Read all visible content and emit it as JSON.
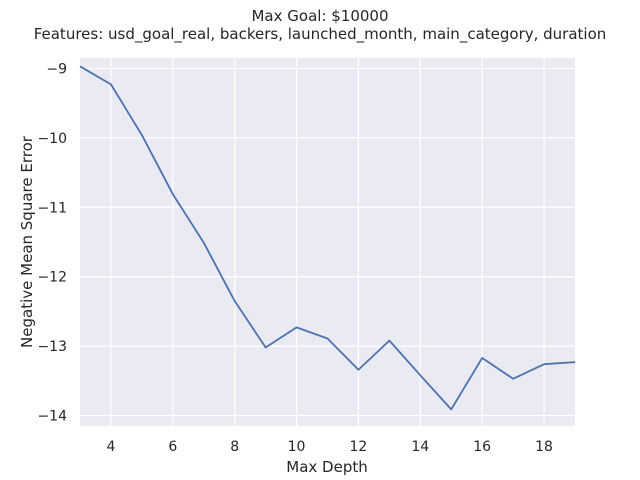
{
  "chart_data": {
    "type": "line",
    "title": "Max Goal: $10000",
    "subtitle": "Features: usd_goal_real, backers, launched_month, main_category, duration",
    "xlabel": "Max Depth",
    "ylabel": "Negative Mean Square Error",
    "xlim": [
      3,
      19
    ],
    "ylim": [
      -14.15,
      -8.85
    ],
    "xticks": [
      4,
      6,
      8,
      10,
      12,
      14,
      16,
      18
    ],
    "yticks": [
      -9,
      -10,
      -11,
      -12,
      -13,
      -14
    ],
    "ytick_labels": [
      "−9",
      "−10",
      "−11",
      "−12",
      "−13",
      "−14"
    ],
    "grid": true,
    "colors": {
      "background": "#eaeaf2",
      "grid": "#ffffff",
      "line": "#4c72b0"
    },
    "series": [
      {
        "x": [
          3,
          4,
          5,
          6,
          7,
          8,
          9,
          10,
          11,
          12,
          13,
          14,
          15,
          16,
          17,
          18,
          19
        ],
        "values": [
          -8.97,
          -9.23,
          -9.96,
          -10.81,
          -11.51,
          -12.35,
          -13.02,
          -12.73,
          -12.89,
          -13.34,
          -12.92,
          -13.42,
          -13.91,
          -13.17,
          -13.47,
          -13.26,
          -13.23
        ]
      }
    ]
  }
}
